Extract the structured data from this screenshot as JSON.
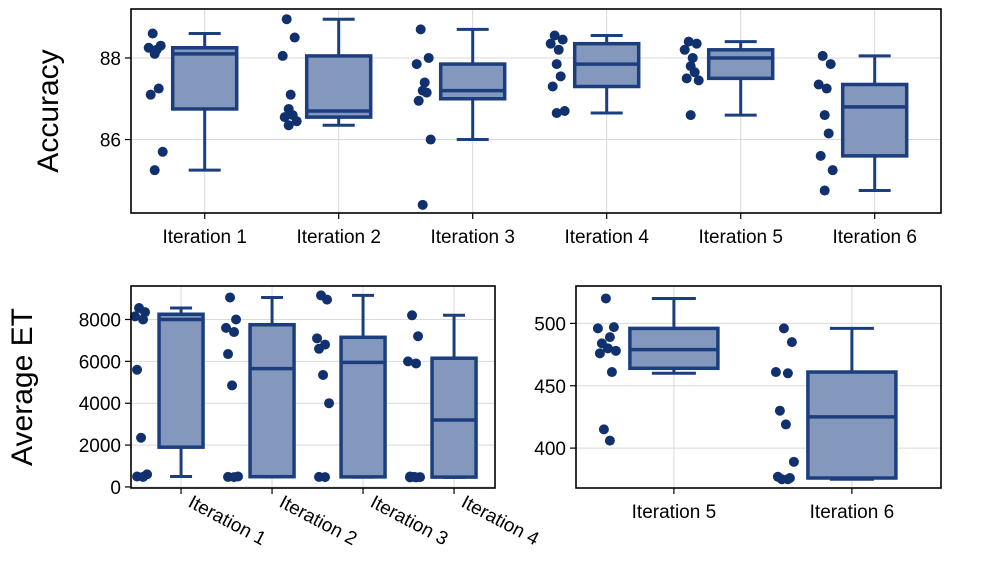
{
  "colors": {
    "box_fill": "#8497bd",
    "box_edge": "#1b3f7e",
    "point": "#10306e",
    "grid": "#d9d9d9"
  },
  "chart_data": [
    {
      "type": "box",
      "id": "accuracy",
      "ylabel": "Accuracy",
      "ylim": [
        84.2,
        89.2
      ],
      "yticks": [
        86,
        88
      ],
      "categories": [
        "Iteration 1",
        "Iteration 2",
        "Iteration 3",
        "Iteration 4",
        "Iteration 5",
        "Iteration 6"
      ],
      "boxes": [
        {
          "min": 85.25,
          "q1": 86.75,
          "median": 88.1,
          "q3": 88.25,
          "max": 88.6
        },
        {
          "min": 86.35,
          "q1": 86.55,
          "median": 86.7,
          "q3": 88.05,
          "max": 88.95
        },
        {
          "min": 86.0,
          "q1": 87.0,
          "median": 87.2,
          "q3": 87.85,
          "max": 88.7
        },
        {
          "min": 86.65,
          "q1": 87.3,
          "median": 87.85,
          "q3": 88.35,
          "max": 88.55
        },
        {
          "min": 86.6,
          "q1": 87.5,
          "median": 88.0,
          "q3": 88.2,
          "max": 88.4
        },
        {
          "min": 84.75,
          "q1": 85.6,
          "median": 86.8,
          "q3": 87.35,
          "max": 88.05
        }
      ],
      "points": [
        [
          88.6,
          88.3,
          88.25,
          88.2,
          88.1,
          87.25,
          87.1,
          85.7,
          85.25
        ],
        [
          88.95,
          88.5,
          88.05,
          87.1,
          86.75,
          86.6,
          86.55,
          86.45,
          86.35
        ],
        [
          88.7,
          88.0,
          87.85,
          87.4,
          87.2,
          87.15,
          86.95,
          86.0,
          84.4
        ],
        [
          88.55,
          88.45,
          88.35,
          88.2,
          87.85,
          87.55,
          87.3,
          86.7,
          86.65
        ],
        [
          88.4,
          88.35,
          88.2,
          88.0,
          87.8,
          87.65,
          87.5,
          87.45,
          86.6
        ],
        [
          88.05,
          87.85,
          87.35,
          87.25,
          86.6,
          86.15,
          85.6,
          85.25,
          84.75
        ]
      ]
    },
    {
      "type": "box",
      "id": "avg_et_left",
      "ylabel": "Average ET",
      "ylim": [
        -50,
        9600
      ],
      "yticks": [
        0,
        2000,
        4000,
        6000,
        8000
      ],
      "categories": [
        "Iteration 1",
        "Iteration 2",
        "Iteration 3",
        "Iteration 4"
      ],
      "boxes": [
        {
          "min": 500,
          "q1": 1900,
          "median": 8000,
          "q3": 8250,
          "max": 8550
        },
        {
          "min": 480,
          "q1": 490,
          "median": 5650,
          "q3": 7750,
          "max": 9050
        },
        {
          "min": 470,
          "q1": 480,
          "median": 5950,
          "q3": 7150,
          "max": 9150
        },
        {
          "min": 460,
          "q1": 470,
          "median": 3200,
          "q3": 6150,
          "max": 8200
        }
      ],
      "points": [
        [
          8550,
          8350,
          8150,
          8000,
          5600,
          2350,
          600,
          500,
          480
        ],
        [
          9050,
          8000,
          7600,
          7400,
          6350,
          4850,
          500,
          480,
          470
        ],
        [
          9150,
          8950,
          7100,
          6800,
          6600,
          5350,
          4000,
          480,
          470
        ],
        [
          8200,
          7200,
          6000,
          5900,
          500,
          480,
          470,
          460,
          460
        ]
      ]
    },
    {
      "type": "box",
      "id": "avg_et_right",
      "ylabel": "",
      "ylim": [
        368,
        530
      ],
      "yticks": [
        400,
        450,
        500
      ],
      "categories": [
        "Iteration 5",
        "Iteration 6"
      ],
      "boxes": [
        {
          "min": 460,
          "q1": 464,
          "median": 479,
          "q3": 496,
          "max": 520
        },
        {
          "min": 375,
          "q1": 376,
          "median": 425,
          "q3": 461,
          "max": 496
        }
      ],
      "points": [
        [
          520,
          497,
          496,
          489,
          484,
          480,
          478,
          476,
          461,
          415,
          406
        ],
        [
          496,
          485,
          461,
          460,
          430,
          419,
          389,
          377,
          376,
          375,
          375
        ]
      ]
    }
  ]
}
